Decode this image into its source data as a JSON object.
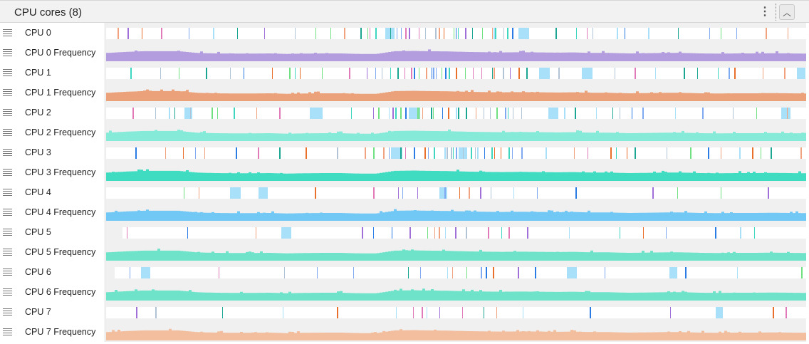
{
  "header": {
    "title": "CPU cores (8)",
    "more_icon": "vertical-dots-icon",
    "collapse_icon": "chevron-up-icon"
  },
  "tracks": [
    {
      "label": "CPU 0",
      "type": "cpu"
    },
    {
      "label": "CPU 0 Frequency",
      "type": "freq",
      "color": "#b39ddf"
    },
    {
      "label": "CPU 1",
      "type": "cpu"
    },
    {
      "label": "CPU 1 Frequency",
      "type": "freq",
      "color": "#eba27a"
    },
    {
      "label": "CPU 2",
      "type": "cpu"
    },
    {
      "label": "CPU 2 Frequency",
      "type": "freq",
      "color": "#86ead8"
    },
    {
      "label": "CPU 3",
      "type": "cpu"
    },
    {
      "label": "CPU 3 Frequency",
      "type": "freq",
      "color": "#40dcc2"
    },
    {
      "label": "CPU 4",
      "type": "cpu"
    },
    {
      "label": "CPU 4 Frequency",
      "type": "freq",
      "color": "#72c8f5"
    },
    {
      "label": "CPU 5",
      "type": "cpu"
    },
    {
      "label": "CPU 5 Frequency",
      "type": "freq",
      "color": "#6fe3ca"
    },
    {
      "label": "CPU 6",
      "type": "cpu"
    },
    {
      "label": "CPU 6 Frequency",
      "type": "freq",
      "color": "#6fe3ca"
    },
    {
      "label": "CPU 7",
      "type": "cpu"
    },
    {
      "label": "CPU 7 Frequency",
      "type": "freq",
      "color": "#f3be9d"
    }
  ],
  "slice_colors": [
    "#a8e0fa",
    "#2a7be4",
    "#3fd6c0",
    "#f0a37e",
    "#7fa9f0",
    "#a070d8",
    "#e07ab8",
    "#b0c4d6",
    "#e8702a",
    "#70e080",
    "#1aa690"
  ],
  "frequency_profile": [
    0.55,
    0.65,
    0.72,
    0.72,
    0.72,
    0.55,
    0.5,
    0.48,
    0.48,
    0.5,
    0.45,
    0.48,
    0.5,
    0.5,
    0.45,
    0.45,
    0.72,
    0.75,
    0.72,
    0.7,
    0.65,
    0.62,
    0.6,
    0.62,
    0.6,
    0.58,
    0.6,
    0.55,
    0.55,
    0.5,
    0.52,
    0.55,
    0.55,
    0.5,
    0.48,
    0.5,
    0.5,
    0.52,
    0.5,
    0.48
  ]
}
